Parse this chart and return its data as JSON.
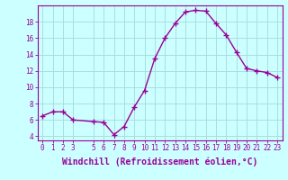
{
  "x": [
    0,
    1,
    2,
    3,
    5,
    6,
    7,
    8,
    9,
    10,
    11,
    12,
    13,
    14,
    15,
    16,
    17,
    18,
    19,
    20,
    21,
    22,
    23
  ],
  "y": [
    6.5,
    7.0,
    7.0,
    6.0,
    5.8,
    5.7,
    4.2,
    5.2,
    7.6,
    9.6,
    13.5,
    16.0,
    17.8,
    19.2,
    19.4,
    19.3,
    17.8,
    16.4,
    14.3,
    12.3,
    12.0,
    11.8,
    11.2
  ],
  "line_color": "#990099",
  "marker": "+",
  "marker_size": 4,
  "marker_lw": 1.0,
  "bg_color": "#ccffff",
  "grid_color": "#aadddd",
  "xlabel": "Windchill (Refroidissement éolien,°C)",
  "xlabel_color": "#990099",
  "xlim": [
    -0.5,
    23.5
  ],
  "ylim": [
    3.5,
    20.0
  ],
  "yticks": [
    4,
    6,
    8,
    10,
    12,
    14,
    16,
    18
  ],
  "xticks": [
    0,
    1,
    2,
    3,
    5,
    6,
    7,
    8,
    9,
    10,
    11,
    12,
    13,
    14,
    15,
    16,
    17,
    18,
    19,
    20,
    21,
    22,
    23
  ],
  "tick_color": "#990099",
  "tick_fontsize": 5.5,
  "xlabel_fontsize": 7.0,
  "linewidth": 1.0,
  "spine_color": "#990099"
}
